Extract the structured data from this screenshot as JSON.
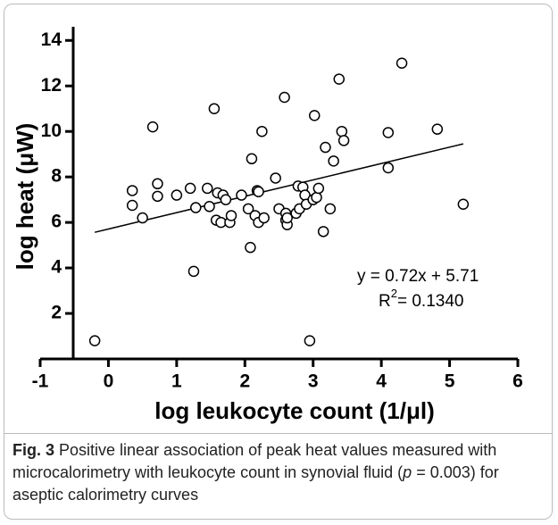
{
  "chart_data": {
    "type": "scatter",
    "xlabel": "log leukocyte count (1/μl)",
    "ylabel": "log heat (μW)",
    "x": [
      -0.2,
      0.35,
      0.35,
      0.5,
      0.65,
      0.72,
      0.72,
      1.0,
      1.2,
      1.25,
      1.28,
      1.45,
      1.48,
      1.55,
      1.58,
      1.6,
      1.65,
      1.68,
      1.72,
      1.78,
      1.8,
      1.95,
      2.05,
      2.08,
      2.1,
      2.15,
      2.18,
      2.2,
      2.2,
      2.25,
      2.28,
      2.45,
      2.5,
      2.58,
      2.6,
      2.6,
      2.62,
      2.62,
      2.75,
      2.78,
      2.8,
      2.85,
      2.88,
      2.9,
      2.95,
      3.0,
      3.02,
      3.05,
      3.08,
      3.15,
      3.18,
      3.25,
      3.3,
      3.38,
      3.42,
      3.45,
      4.1,
      4.1,
      4.3,
      4.82,
      5.2
    ],
    "y": [
      0.8,
      7.4,
      6.75,
      6.2,
      10.2,
      7.7,
      7.15,
      7.2,
      7.5,
      3.85,
      6.65,
      7.5,
      6.7,
      11.0,
      6.1,
      7.3,
      6.0,
      7.2,
      7.0,
      6.0,
      6.3,
      7.2,
      6.6,
      4.9,
      8.8,
      6.3,
      7.4,
      7.35,
      6.0,
      10.0,
      6.2,
      7.95,
      6.6,
      11.5,
      6.4,
      6.1,
      5.9,
      6.2,
      6.4,
      7.6,
      6.6,
      7.55,
      7.2,
      6.8,
      0.8,
      7.0,
      10.7,
      7.1,
      7.5,
      5.6,
      9.3,
      6.6,
      8.7,
      12.3,
      10.0,
      9.6,
      8.4,
      9.95,
      13.0,
      10.1,
      6.8
    ],
    "xlim": [
      -1,
      6
    ],
    "xticks": [
      -1,
      0,
      1,
      2,
      3,
      4,
      5,
      6
    ],
    "ylim": [
      0,
      14.6
    ],
    "yticks": [
      2,
      4,
      6,
      8,
      10,
      12,
      14
    ],
    "fit": {
      "slope": 0.72,
      "intercept": 5.71,
      "equation": "y = 0.72x + 5.71",
      "r2_symbol": "R",
      "r2_superscript": "2",
      "r2_text": "= 0.1340"
    },
    "caption": [
      "Fig. 3",
      " Positive linear association of peak heat values measured with microcalorimetry with leukocyte count in synovial fluid (",
      "p",
      " = 0.003) for aseptic calorimetry curves"
    ]
  }
}
